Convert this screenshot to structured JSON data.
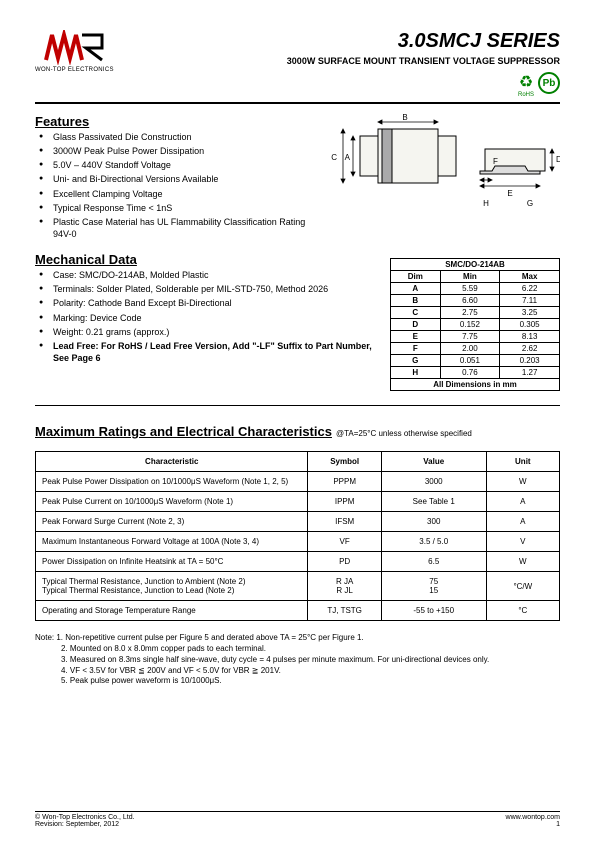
{
  "header": {
    "company_name": "WON-TOP ELECTRONICS",
    "series_title": "3.0SMCJ  SERIES",
    "subtitle": "3000W SURFACE MOUNT TRANSIENT VOLTAGE SUPPRESSOR",
    "rohs_label": "RoHS",
    "pb_label": "Pb"
  },
  "features": {
    "title": "Features",
    "items": [
      "Glass Passivated Die Construction",
      "3000W Peak Pulse Power Dissipation",
      "5.0V – 440V Standoff Voltage",
      "Uni- and Bi-Directional Versions Available",
      "Excellent Clamping Voltage",
      "Typical Response Time < 1nS",
      "Plastic Case Material has UL Flammability Classification Rating 94V-0"
    ]
  },
  "mechanical": {
    "title": "Mechanical Data",
    "items": [
      "Case: SMC/DO-214AB, Molded Plastic",
      "Terminals: Solder Plated, Solderable per MIL-STD-750, Method 2026",
      "Polarity: Cathode Band Except Bi-Directional",
      "Marking: Device Code",
      "Weight: 0.21 grams (approx.)",
      "Lead Free: For RoHS / Lead Free Version, Add \"-LF\" Suffix to Part Number, See Page 6"
    ]
  },
  "diagram": {
    "labels": {
      "A": "A",
      "B": "B",
      "C": "C",
      "D": "D",
      "E": "E",
      "F": "F",
      "G": "G",
      "H": "H"
    },
    "colors": {
      "body": "#f5f5f0",
      "stroke": "#000000",
      "band": "#888888"
    }
  },
  "dim_table": {
    "caption": "SMC/DO-214AB",
    "headers": [
      "Dim",
      "Min",
      "Max"
    ],
    "rows": [
      [
        "A",
        "5.59",
        "6.22"
      ],
      [
        "B",
        "6.60",
        "7.11"
      ],
      [
        "C",
        "2.75",
        "3.25"
      ],
      [
        "D",
        "0.152",
        "0.305"
      ],
      [
        "E",
        "7.75",
        "8.13"
      ],
      [
        "F",
        "2.00",
        "2.62"
      ],
      [
        "G",
        "0.051",
        "0.203"
      ],
      [
        "H",
        "0.76",
        "1.27"
      ]
    ],
    "footer": "All Dimensions in mm"
  },
  "ratings": {
    "title": "Maximum Ratings and Electrical Characteristics",
    "conditions": "@TA=25°C unless otherwise specified",
    "headers": [
      "Characteristic",
      "Symbol",
      "Value",
      "Unit"
    ],
    "rows": [
      {
        "char": "Peak Pulse Power Dissipation on 10/1000μS Waveform (Note 1, 2, 5)",
        "sym": "PPPM",
        "val": "3000",
        "unit": "W"
      },
      {
        "char": "Peak Pulse Current on 10/1000μS Waveform (Note 1)",
        "sym": "IPPM",
        "val": "See Table 1",
        "unit": "A"
      },
      {
        "char": "Peak Forward Surge Current (Note 2, 3)",
        "sym": "IFSM",
        "val": "300",
        "unit": "A"
      },
      {
        "char": "Maximum Instantaneous Forward Voltage at 100A (Note 3, 4)",
        "sym": "VF",
        "val": "3.5 / 5.0",
        "unit": "V"
      },
      {
        "char": "Power Dissipation on Infinite Heatsink at TA = 50°C",
        "sym": "PD",
        "val": "6.5",
        "unit": "W"
      },
      {
        "char": "Typical Thermal Resistance, Junction to Ambient (Note 2)\nTypical Thermal Resistance, Junction to Lead (Note 2)",
        "sym": "R JA\nR JL",
        "val": "75\n15",
        "unit": "°C/W"
      },
      {
        "char": "Operating and Storage Temperature Range",
        "sym": "TJ, TSTG",
        "val": "-55 to +150",
        "unit": "°C"
      }
    ]
  },
  "notes": {
    "label": "Note:",
    "items": [
      "1. Non-repetitive current pulse per Figure 5 and derated above TA = 25°C per Figure 1.",
      "2. Mounted on 8.0 x 8.0mm copper pads to each terminal.",
      "3. Measured on 8.3ms single half sine-wave, duty cycle = 4 pulses per minute maximum. For uni-directional devices only.",
      "4. VF < 3.5V for VBR ≦ 200V and VF < 5.0V for VBR ≧ 201V.",
      "5. Peak pulse power waveform is 10/1000μS."
    ]
  },
  "footer": {
    "copyright": "© Won-Top Electronics Co., Ltd.",
    "revision": "Revision: September, 2012",
    "website": "www.wontop.com",
    "page": "1"
  }
}
